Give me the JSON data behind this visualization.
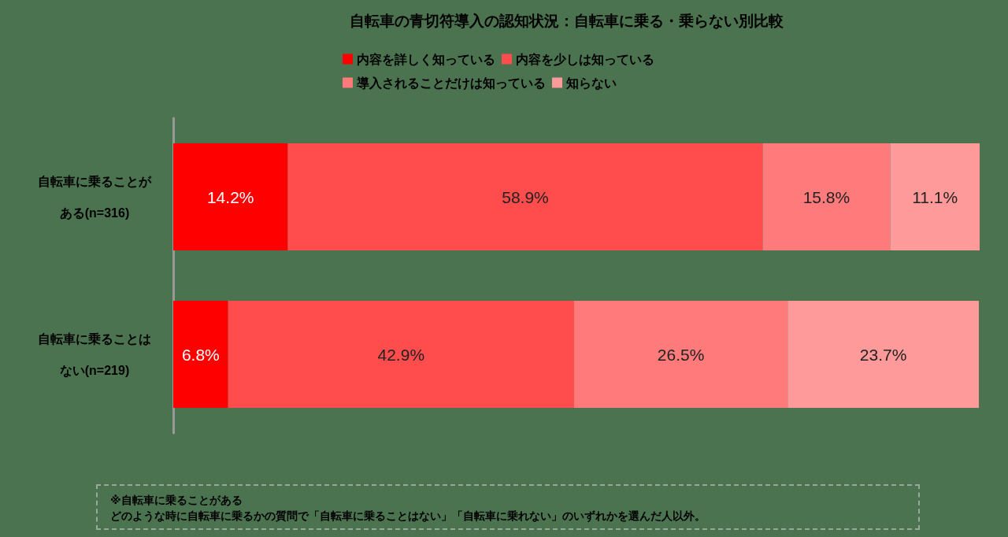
{
  "chart_data": {
    "type": "bar",
    "orientation": "horizontal",
    "stacked": true,
    "title": "自転車の青切符導入の認知状況：自転車に乗る・乗らない別比較",
    "categories": [
      "自転車に乗ることがある(n=316)",
      "自転車に乗ることはない(n=219)"
    ],
    "series": [
      {
        "name": "内容を詳しく知っている",
        "color": "#ff0000",
        "values": [
          14.2,
          6.8
        ],
        "value_labels": [
          "14.2%",
          "6.8%"
        ]
      },
      {
        "name": "内容を少しは知っている",
        "color": "#ff4d4d",
        "values": [
          58.9,
          42.9
        ],
        "value_labels": [
          "58.9%",
          "42.9%"
        ]
      },
      {
        "name": "導入されることだけは知っている",
        "color": "#ff7b7b",
        "values": [
          15.8,
          26.5
        ],
        "value_labels": [
          "15.8%",
          "26.5%"
        ]
      },
      {
        "name": "知らない",
        "color": "#ff9a9a",
        "values": [
          11.1,
          23.7
        ],
        "value_labels": [
          "11.1%",
          "23.7%"
        ]
      }
    ],
    "legend": "top",
    "annotations": [
      "※自転車に乗ることがある",
      "どのような時に自転車に乗るかの質問で「自転車に乗ることはない」「自転車に乗れない」のいずれかを選んだ人以外。"
    ]
  }
}
